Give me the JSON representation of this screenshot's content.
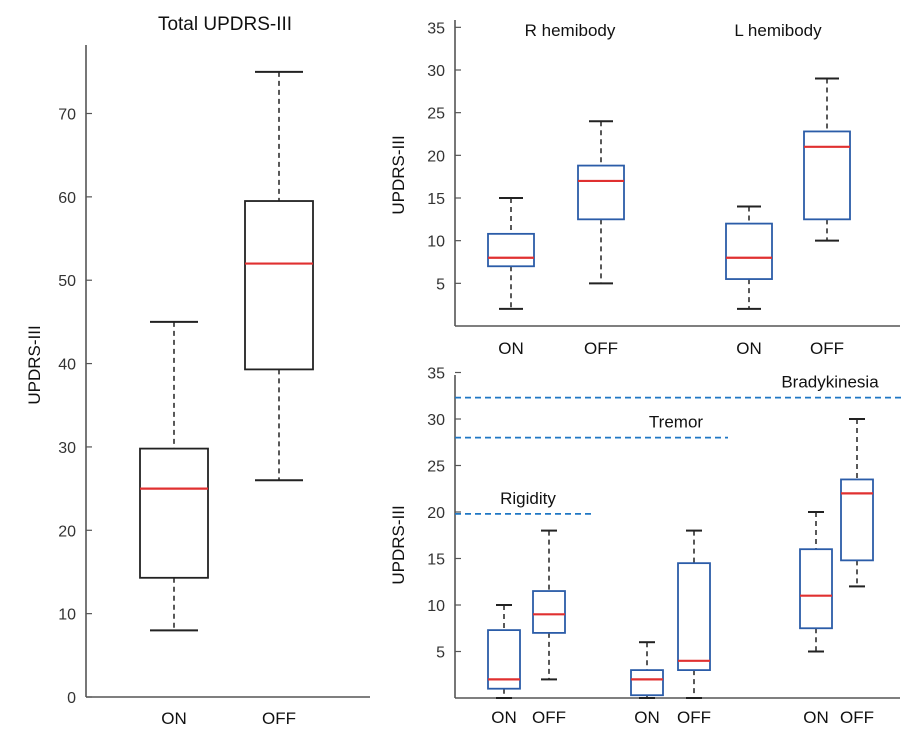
{
  "colors": {
    "box_black": "#222222",
    "box_blue": "#2b5ca8",
    "median": "#e03030",
    "reference_line": "#1f77c4"
  },
  "chart_data": [
    {
      "type": "boxplot",
      "title": "Total UPDRS-III",
      "ylabel": "UPDRS-III",
      "ylim": [
        0,
        80
      ],
      "yticks": [
        0,
        10,
        20,
        30,
        40,
        50,
        60,
        70
      ],
      "categories": [
        "ON",
        "OFF"
      ],
      "boxes": [
        {
          "label": "ON",
          "min": 8,
          "q1": 14.3,
          "median": 25,
          "q3": 29.8,
          "max": 45
        },
        {
          "label": "OFF",
          "min": 26,
          "q1": 39.3,
          "median": 52,
          "q3": 59.5,
          "max": 75
        }
      ],
      "box_color": "#222222"
    },
    {
      "type": "boxplot",
      "ylabel": "UPDRS-III",
      "ylim": [
        0,
        35
      ],
      "yticks": [
        5,
        10,
        15,
        20,
        25,
        30,
        35
      ],
      "groups": [
        {
          "label": "R hemibody",
          "categories": [
            "ON",
            "OFF"
          ]
        },
        {
          "label": "L hemibody",
          "categories": [
            "ON",
            "OFF"
          ]
        }
      ],
      "boxes": [
        {
          "group": "R hemibody",
          "label": "ON",
          "min": 2,
          "q1": 7,
          "median": 8,
          "q3": 10.8,
          "max": 15
        },
        {
          "group": "R hemibody",
          "label": "OFF",
          "min": 5,
          "q1": 12.5,
          "median": 17,
          "q3": 18.8,
          "max": 24
        },
        {
          "group": "L hemibody",
          "label": "ON",
          "min": 2,
          "q1": 5.5,
          "median": 8,
          "q3": 12,
          "max": 14
        },
        {
          "group": "L hemibody",
          "label": "OFF",
          "min": 10,
          "q1": 12.5,
          "median": 21,
          "q3": 22.8,
          "max": 29
        }
      ],
      "box_color": "#2b5ca8"
    },
    {
      "type": "boxplot",
      "ylabel": "UPDRS-III",
      "ylim": [
        0,
        35
      ],
      "yticks": [
        5,
        10,
        15,
        20,
        25,
        30,
        35
      ],
      "groups": [
        {
          "label": "Rigidity",
          "categories": [
            "ON",
            "OFF"
          ]
        },
        {
          "label": "Tremor",
          "categories": [
            "ON",
            "OFF"
          ]
        },
        {
          "label": "Bradykinesia",
          "categories": [
            "ON",
            "OFF"
          ]
        }
      ],
      "reference_lines": [
        {
          "label": "Rigidity",
          "y": 19.8
        },
        {
          "label": "Tremor",
          "y": 28
        },
        {
          "label": "Bradykinesia",
          "y": 32.3
        }
      ],
      "boxes": [
        {
          "group": "Rigidity",
          "label": "ON",
          "min": 0,
          "q1": 1,
          "median": 2,
          "q3": 7.3,
          "max": 10
        },
        {
          "group": "Rigidity",
          "label": "OFF",
          "min": 2,
          "q1": 7,
          "median": 9,
          "q3": 11.5,
          "max": 18
        },
        {
          "group": "Tremor",
          "label": "ON",
          "min": 0,
          "q1": 0.3,
          "median": 2,
          "q3": 3,
          "max": 6
        },
        {
          "group": "Tremor",
          "label": "OFF",
          "min": 0,
          "q1": 3,
          "median": 4,
          "q3": 14.5,
          "max": 18
        },
        {
          "group": "Bradykinesia",
          "label": "ON",
          "min": 5,
          "q1": 7.5,
          "median": 11,
          "q3": 16,
          "max": 20
        },
        {
          "group": "Bradykinesia",
          "label": "OFF",
          "min": 12,
          "q1": 14.8,
          "median": 22,
          "q3": 23.5,
          "max": 30
        }
      ],
      "box_color": "#2b5ca8"
    }
  ]
}
